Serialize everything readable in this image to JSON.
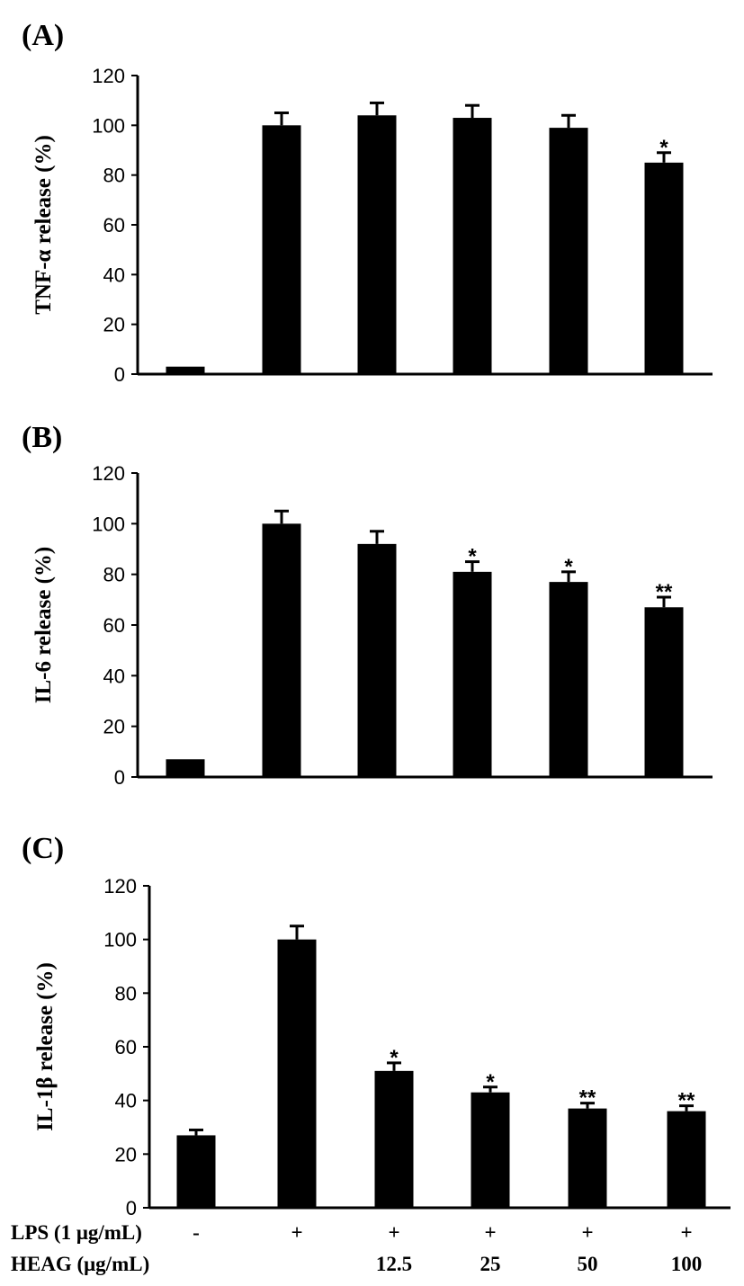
{
  "chart_data": [
    {
      "type": "bar",
      "panel_label": "(A)",
      "ylabel": "TNF-α release (%)",
      "ylim": [
        0,
        120
      ],
      "yticks": [
        "0",
        "20",
        "40",
        "60",
        "80",
        "100",
        "120"
      ],
      "values": [
        3,
        100,
        104,
        103,
        99,
        85
      ],
      "errors": [
        0,
        5,
        5,
        5,
        5,
        4
      ],
      "significance": [
        "",
        "",
        "",
        "",
        "",
        "*"
      ]
    },
    {
      "type": "bar",
      "panel_label": "(B)",
      "ylabel": "IL-6 release (%)",
      "ylim": [
        0,
        120
      ],
      "yticks": [
        "0",
        "20",
        "40",
        "60",
        "80",
        "100",
        "120"
      ],
      "values": [
        7,
        100,
        92,
        81,
        77,
        67
      ],
      "errors": [
        0,
        5,
        5,
        4,
        4,
        4
      ],
      "significance": [
        "",
        "",
        "",
        "*",
        "*",
        "**"
      ]
    },
    {
      "type": "bar",
      "panel_label": "(C)",
      "ylabel": "IL-1β release (%)",
      "ylim": [
        0,
        120
      ],
      "yticks": [
        "0",
        "20",
        "40",
        "60",
        "80",
        "100",
        "120"
      ],
      "values": [
        27,
        100,
        51,
        43,
        37,
        36
      ],
      "errors": [
        2,
        5,
        3,
        2,
        2,
        2
      ],
      "significance": [
        "",
        "",
        "*",
        "*",
        "**",
        "**"
      ]
    }
  ],
  "conditions": {
    "lps_label": "LPS (1 μg/mL)",
    "lps_values": [
      "-",
      "+",
      "+",
      "+",
      "+",
      "+"
    ],
    "heag_label": "HEAG (μg/mL)",
    "heag_values": [
      "",
      "",
      "12.5",
      "25",
      "50",
      "100"
    ]
  }
}
